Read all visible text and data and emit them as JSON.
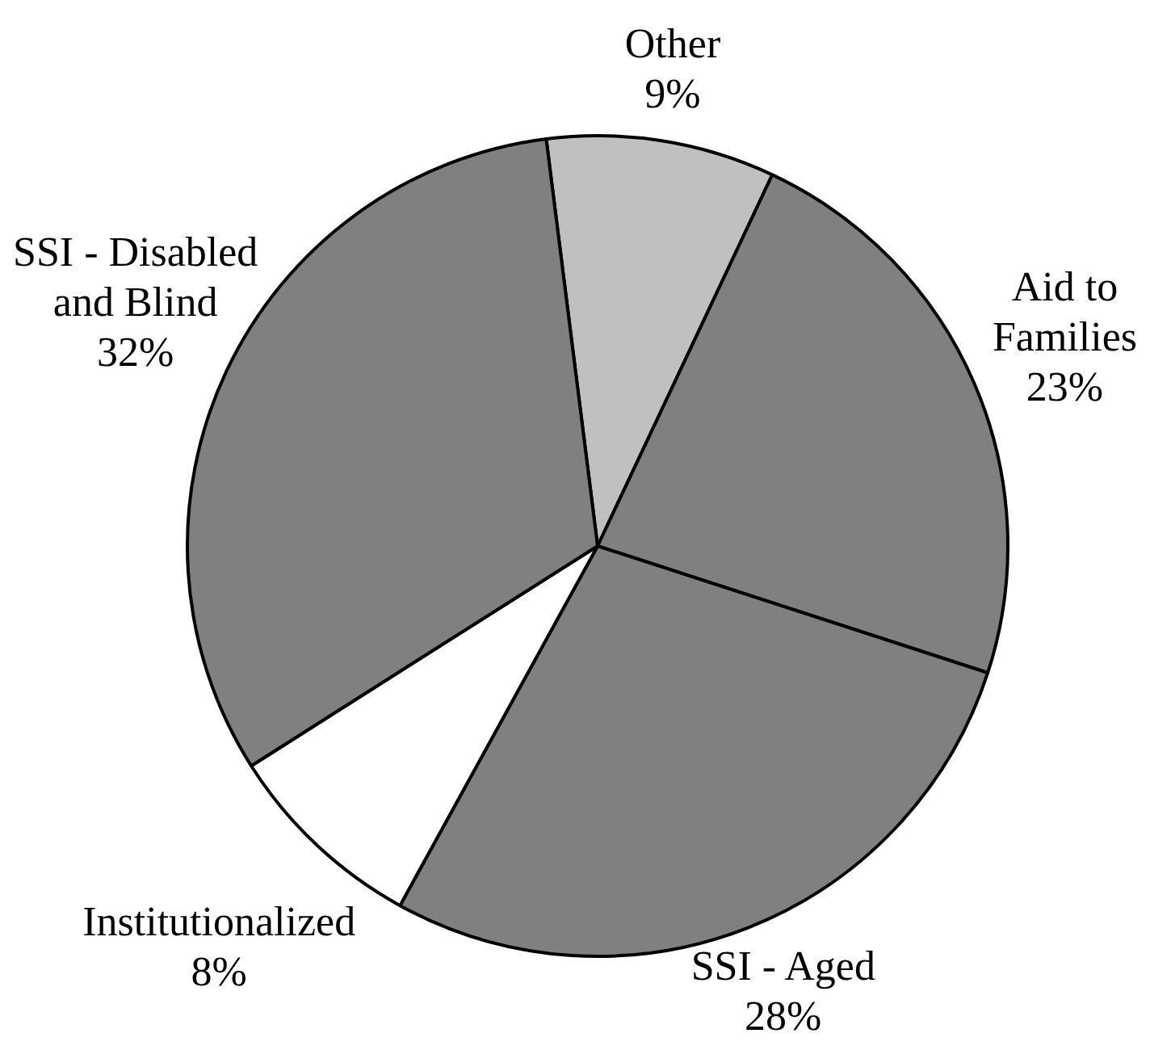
{
  "chart_data": {
    "type": "pie",
    "categories": [
      "Other",
      "Aid to Families",
      "SSI - Aged",
      "Institutionalized",
      "SSI - Disabled and Blind"
    ],
    "values": [
      9,
      23,
      28,
      8,
      32
    ],
    "value_labels": [
      "9%",
      "23%",
      "28%",
      "8%",
      "32%"
    ],
    "colors": [
      "#c0c0c0",
      "#808080",
      "#808080",
      "#ffffff",
      "#808080"
    ]
  }
}
